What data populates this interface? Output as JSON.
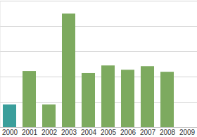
{
  "chart_data": {
    "type": "bar",
    "categories": [
      "2000",
      "2001",
      "2002",
      "2003",
      "2004",
      "2005",
      "2006",
      "2007",
      "2008",
      "2009"
    ],
    "values": [
      0.9,
      2.22,
      0.9,
      4.49,
      2.14,
      2.44,
      2.27,
      2.41,
      2.19,
      null
    ],
    "colors": [
      "#3a9e9b",
      "#7daa5f",
      "#7daa5f",
      "#7daa5f",
      "#7daa5f",
      "#7daa5f",
      "#7daa5f",
      "#7daa5f",
      "#7daa5f",
      "#7daa5f"
    ],
    "ylim": [
      0,
      5
    ],
    "yticks": [
      0,
      1,
      2,
      3,
      4,
      5
    ],
    "grid": true,
    "tick_labels": "x"
  }
}
